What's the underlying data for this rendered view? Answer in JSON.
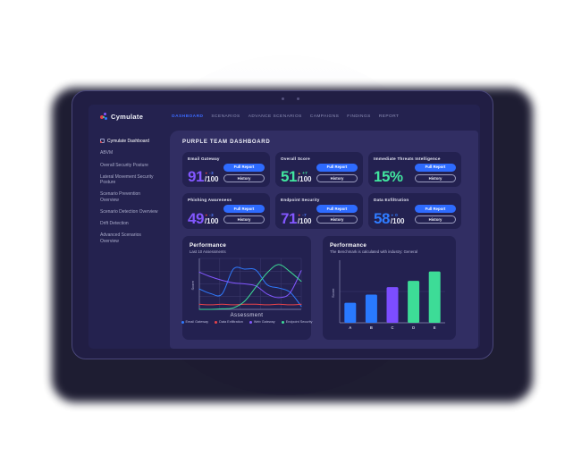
{
  "brand": {
    "name": "Cymulate"
  },
  "topbar": {
    "nav": [
      {
        "label": "DASHBOARD",
        "active": true
      },
      {
        "label": "SCENARIOS",
        "active": false
      },
      {
        "label": "ADVANCE SCENARIOS",
        "active": false
      },
      {
        "label": "CAMPAIGNS",
        "active": false
      },
      {
        "label": "FINDINGS",
        "active": false
      },
      {
        "label": "REPORT",
        "active": false
      }
    ]
  },
  "sidebar": {
    "items": [
      {
        "label": "Cymulate Dashboard",
        "active": true
      },
      {
        "label": "ABVM",
        "active": false
      },
      {
        "label": "Overall Security Posture",
        "active": false
      },
      {
        "label": "Lateral Movement Security Posture",
        "active": false
      },
      {
        "label": "Scenario Prevention Overview",
        "active": false
      },
      {
        "label": "Scenario Detection Overview",
        "active": false
      },
      {
        "label": "Drift Detection",
        "active": false
      },
      {
        "label": "Advanced Scenarios Overview",
        "active": false
      }
    ]
  },
  "main": {
    "heading": "PURPLE TEAM DASHBOARD",
    "button_labels": {
      "full_report": "Full Report",
      "history": "History"
    },
    "cards": [
      {
        "title": "Email Gateway",
        "value": "91",
        "suffix": "/100",
        "value_color": "#8257ff",
        "delta_arrow": "▼",
        "delta_arrow_color": "#e8434a",
        "delta_value": "-3",
        "delta_value_color": "#4f7cff"
      },
      {
        "title": "Overall Score",
        "value": "51",
        "suffix": "/100",
        "value_color": "#41e69f",
        "delta_arrow": "▲",
        "delta_arrow_color": "#f0a33f",
        "delta_value": "+7",
        "delta_value_color": "#41e69f"
      },
      {
        "title": "Immediate Threats Intelligence",
        "value": "15%",
        "suffix": "",
        "value_color": "#41e69f"
      },
      {
        "title": "Phishing Awareness",
        "value": "49",
        "suffix": "/100",
        "value_color": "#8257ff",
        "delta_arrow": "▼",
        "delta_arrow_color": "#e8434a",
        "delta_value": "-3",
        "delta_value_color": "#4f7cff"
      },
      {
        "title": "Endpoint Security",
        "value": "71",
        "suffix": "/100",
        "value_color": "#8257ff",
        "delta_arrow": "▼",
        "delta_arrow_color": "#e8434a",
        "delta_value": "-7",
        "delta_value_color": "#4f7cff"
      },
      {
        "title": "Data Exfiltration",
        "value": "58",
        "suffix": "/100",
        "value_color": "#2f7bff",
        "delta_arrow": "▼",
        "delta_arrow_color": "#2f7bff",
        "delta_value": "0",
        "delta_value_color": "#2f7bff"
      }
    ]
  },
  "chart_data": [
    {
      "type": "line",
      "title": "Performance",
      "subtitle": "Last 10 Assessments",
      "xlabel": "Assessment",
      "ylabel": "Score",
      "x": [
        1,
        2,
        3,
        4,
        5,
        6,
        7,
        8,
        9,
        10
      ],
      "ylim": [
        0,
        100
      ],
      "grid": true,
      "legend_position": "bottom",
      "series": [
        {
          "name": "Email Gateway",
          "color": "#2f7bff",
          "values": [
            40,
            31,
            30,
            79,
            79,
            77,
            48,
            42,
            34,
            6
          ]
        },
        {
          "name": "Data Exfiltration",
          "color": "#e8434a",
          "values": [
            10,
            9,
            10,
            9,
            10,
            10,
            9,
            10,
            9,
            10
          ]
        },
        {
          "name": "Web Gateway",
          "color": "#8257ff",
          "values": [
            73,
            64,
            57,
            52,
            50,
            46,
            30,
            23,
            32,
            76
          ]
        },
        {
          "name": "Endpoint Security",
          "color": "#3ddc97",
          "values": [
            0,
            0,
            1,
            3,
            16,
            44,
            72,
            88,
            74,
            55
          ]
        }
      ]
    },
    {
      "type": "bar",
      "title": "Performance",
      "subtitle": "The Benchmark is calculated with industry: General",
      "xlabel": "",
      "ylabel": "Score",
      "ylim": [
        0,
        100
      ],
      "categories": [
        "A",
        "B",
        "C",
        "D",
        "E"
      ],
      "values": [
        32,
        45,
        57,
        67,
        82
      ],
      "colors": [
        "#2979ff",
        "#2979ff",
        "#7c4dff",
        "#3ddc97",
        "#3ddc97"
      ],
      "gridlines": [
        50
      ]
    }
  ],
  "colors": {
    "accent_blue": "#2e6bff",
    "nav_active": "#3b6aff",
    "screen_bg": "#24224f",
    "panel_bg": "#312e63",
    "card_bg": "#232150"
  }
}
